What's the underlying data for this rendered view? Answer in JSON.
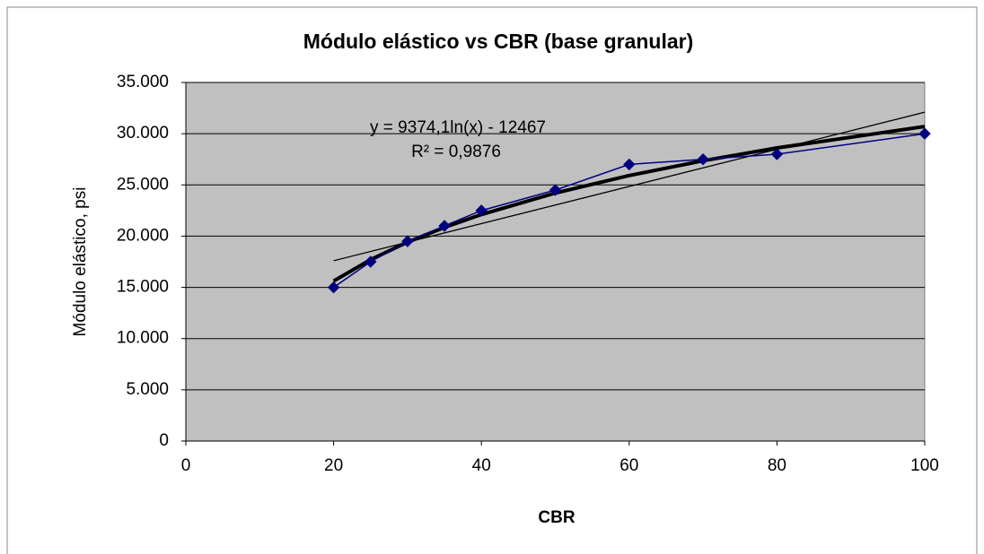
{
  "chart_data": {
    "type": "scatter",
    "title": "Módulo elástico vs CBR (base granular)",
    "xlabel": "CBR",
    "ylabel": "Módulo elástico, psi",
    "series": [
      {
        "color": "#000080",
        "marker": "diamond",
        "line": true,
        "x": [
          20,
          25,
          30,
          35,
          40,
          50,
          60,
          70,
          80,
          100
        ],
        "values": [
          15000,
          17500,
          19500,
          21000,
          22500,
          24500,
          27000,
          27500,
          28000,
          30000
        ]
      },
      {
        "color": "#000000",
        "marker": "none",
        "line": true,
        "trend": "logarithmic",
        "x": [
          20,
          25,
          30,
          35,
          40,
          50,
          60,
          70,
          80,
          100
        ],
        "values": [
          15616,
          17707,
          19416,
          20861,
          22113,
          24205,
          25914,
          27359,
          28611,
          30702
        ]
      },
      {
        "color": "#000000",
        "marker": "none",
        "line": true,
        "trend": "linear",
        "x": [
          20,
          100
        ],
        "values": [
          17600,
          32100
        ]
      }
    ],
    "annotations": [
      "y = 9374,1ln(x) - 12467",
      "R² = 0,9876"
    ],
    "xlim": [
      0,
      100
    ],
    "xticks": [
      0,
      20,
      40,
      60,
      80,
      100
    ],
    "ylim": [
      0,
      35000
    ],
    "yticks": [
      0,
      {
        "value": 5000,
        "label": "5.000"
      },
      {
        "value": 10000,
        "label": "10.000"
      },
      {
        "value": 15000,
        "label": "15.000"
      },
      {
        "value": 20000,
        "label": "20.000"
      },
      {
        "value": 25000,
        "label": "25.000"
      },
      {
        "value": 30000,
        "label": "30.000"
      },
      {
        "value": 35000,
        "label": "35.000"
      }
    ],
    "grid": true,
    "plot_background": "#c0c0c0"
  }
}
